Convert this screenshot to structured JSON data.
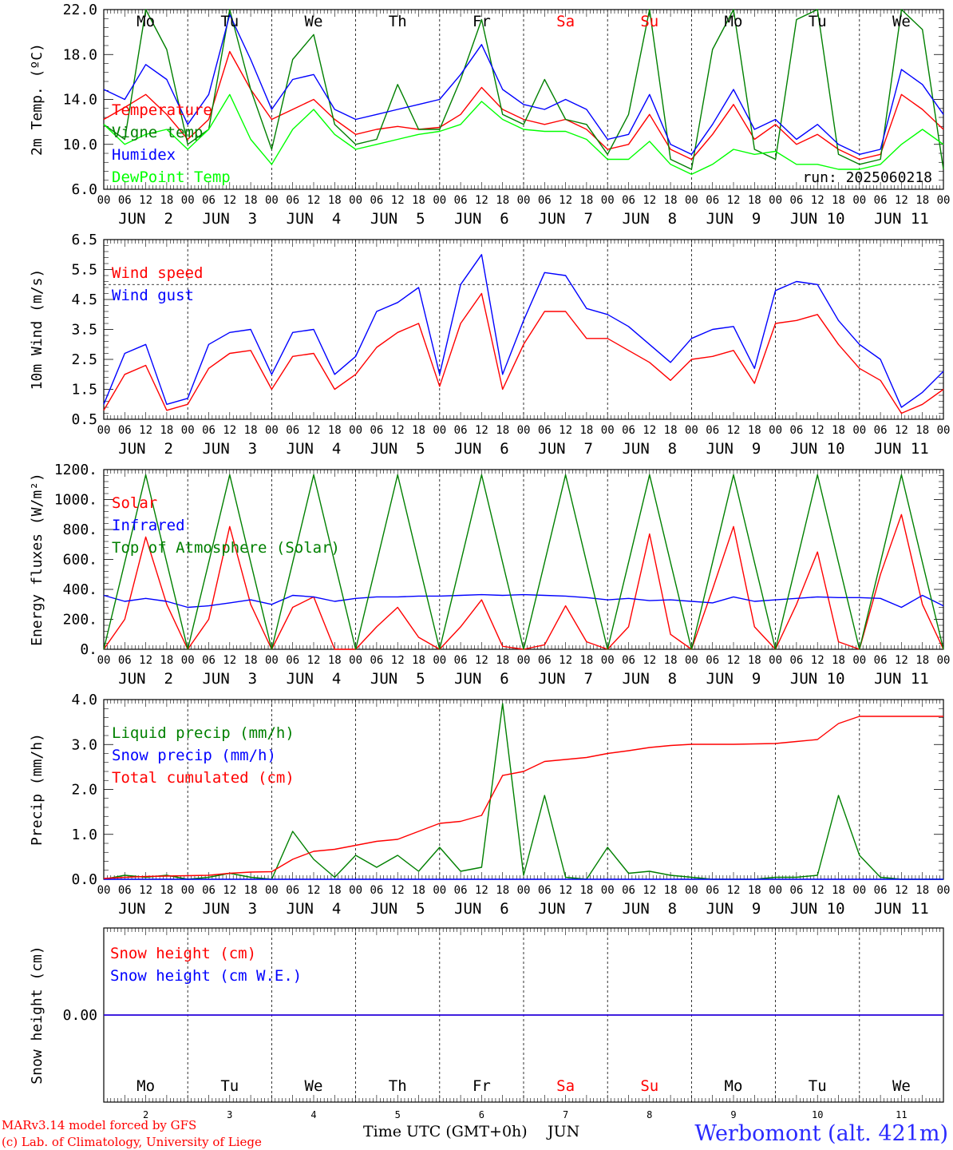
{
  "run_label": "run: 2025060218",
  "colors": {
    "red": "#ff0000",
    "dkgreen": "#008000",
    "blue": "#0000ff",
    "ltgreen": "#00ff00",
    "black": "#000000",
    "weekend": "#ff0000"
  },
  "days": [
    {
      "dow": "Mo",
      "date": "JUN  2",
      "num": "2",
      "weekend": false
    },
    {
      "dow": "Tu",
      "date": "JUN  3",
      "num": "3",
      "weekend": false
    },
    {
      "dow": "We",
      "date": "JUN  4",
      "num": "4",
      "weekend": false
    },
    {
      "dow": "Th",
      "date": "JUN  5",
      "num": "5",
      "weekend": false
    },
    {
      "dow": "Fr",
      "date": "JUN  6",
      "num": "6",
      "weekend": false
    },
    {
      "dow": "Sa",
      "date": "JUN  7",
      "num": "7",
      "weekend": true
    },
    {
      "dow": "Su",
      "date": "JUN  8",
      "num": "8",
      "weekend": true
    },
    {
      "dow": "Mo",
      "date": "JUN  9",
      "num": "9",
      "weekend": false
    },
    {
      "dow": "Tu",
      "date": "JUN 10",
      "num": "10",
      "weekend": false
    },
    {
      "dow": "We",
      "date": "JUN 11",
      "num": "11",
      "weekend": false
    }
  ],
  "hour_labels": [
    "00",
    "06",
    "12",
    "18"
  ],
  "final_hour_label": "00",
  "footer": {
    "model_line": "MARv3.14 model forced by GFS",
    "copyright_line": "(c) Lab. of Climatology, University of Liege",
    "time_axis_label": "Time UTC (GMT+0h)",
    "month_label": "JUN",
    "station": "Werbomont (alt. 421m)"
  },
  "chart_data": [
    {
      "type": "line",
      "ylabel": "2m Temp. (ºC)",
      "ylim": [
        6,
        24
      ],
      "yticks": [
        "6.0",
        "10.0",
        "14.0",
        "18.0",
        "22.0"
      ],
      "x_hours": [
        0,
        6,
        12,
        18,
        24,
        30,
        36,
        42,
        48,
        54,
        60,
        66,
        72,
        78,
        84,
        90,
        96,
        102,
        108,
        114,
        120,
        126,
        132,
        138,
        144,
        150,
        156,
        162,
        168,
        174,
        180,
        186,
        192,
        198,
        204,
        210,
        216,
        222,
        228,
        234,
        240
      ],
      "series": [
        {
          "name": "Temperature",
          "color": "#ff0000",
          "values": [
            13.0,
            14.2,
            15.5,
            13.5,
            11.0,
            13.0,
            19.8,
            16.0,
            13.0,
            14.0,
            15.0,
            13.0,
            11.5,
            12.0,
            12.3,
            12.0,
            12.2,
            13.5,
            16.2,
            14.0,
            13.0,
            12.5,
            13.0,
            12.0,
            10.0,
            10.5,
            13.5,
            10.0,
            9.0,
            11.5,
            14.5,
            11.0,
            12.5,
            10.5,
            11.5,
            10.0,
            9.0,
            9.5,
            15.5,
            14.0,
            12.0
          ]
        },
        {
          "name": "Vigne temp",
          "color": "#008000",
          "values": [
            12.5,
            11.0,
            24.0,
            20.0,
            10.5,
            12.0,
            24.0,
            16.0,
            10.0,
            19.0,
            21.5,
            12.5,
            10.5,
            11.0,
            16.5,
            12.0,
            12.0,
            17.0,
            23.0,
            13.5,
            12.5,
            17.0,
            13.0,
            12.5,
            9.5,
            13.5,
            24.0,
            9.0,
            8.0,
            20.0,
            24.0,
            10.0,
            9.0,
            23.0,
            24.0,
            9.5,
            8.5,
            9.0,
            24.0,
            22.0,
            8.0
          ]
        },
        {
          "name": "Humidex",
          "color": "#0000ff",
          "values": [
            16.0,
            15.0,
            18.5,
            17.0,
            12.5,
            15.5,
            23.5,
            19.0,
            14.0,
            17.0,
            17.5,
            14.0,
            13.0,
            13.5,
            14.0,
            14.5,
            15.0,
            17.5,
            20.5,
            16.0,
            14.5,
            14.0,
            15.0,
            14.0,
            11.0,
            11.5,
            15.5,
            10.5,
            9.5,
            12.5,
            16.0,
            12.0,
            13.0,
            11.0,
            12.5,
            10.5,
            9.5,
            10.0,
            18.0,
            16.5,
            13.5
          ]
        },
        {
          "name": "DewPoint Temp",
          "color": "#00ff00",
          "values": [
            12.5,
            10.5,
            11.5,
            12.0,
            10.0,
            12.0,
            15.5,
            11.0,
            8.5,
            12.0,
            14.0,
            11.5,
            10.0,
            10.5,
            11.0,
            11.5,
            11.8,
            12.5,
            14.8,
            13.0,
            12.0,
            11.8,
            11.8,
            11.0,
            9.0,
            9.0,
            10.8,
            8.5,
            7.5,
            8.5,
            10.0,
            9.5,
            9.8,
            8.5,
            8.5,
            8.0,
            8.0,
            8.5,
            10.5,
            12.0,
            10.5
          ]
        }
      ]
    },
    {
      "type": "line",
      "ylabel": "10m Wind (m/s)",
      "ylim": [
        0.5,
        6.5
      ],
      "yticks": [
        "0.5",
        "1.5",
        "2.5",
        "3.5",
        "4.5",
        "5.5",
        "6.5"
      ],
      "reference_line": 5.0,
      "x_hours": [
        0,
        6,
        12,
        18,
        24,
        30,
        36,
        42,
        48,
        54,
        60,
        66,
        72,
        78,
        84,
        90,
        96,
        102,
        108,
        114,
        120,
        126,
        132,
        138,
        144,
        150,
        156,
        162,
        168,
        174,
        180,
        186,
        192,
        198,
        204,
        210,
        216,
        222,
        228,
        234,
        240
      ],
      "series": [
        {
          "name": "Wind speed",
          "color": "#ff0000",
          "values": [
            0.8,
            2.0,
            2.3,
            0.8,
            1.0,
            2.2,
            2.7,
            2.8,
            1.5,
            2.6,
            2.7,
            1.5,
            2.0,
            2.9,
            3.4,
            3.7,
            1.6,
            3.7,
            4.7,
            1.5,
            3.0,
            4.1,
            4.1,
            3.2,
            3.2,
            2.8,
            2.4,
            1.8,
            2.5,
            2.6,
            2.8,
            1.7,
            3.7,
            3.8,
            4.0,
            3.0,
            2.2,
            1.8,
            0.7,
            1.0,
            1.5
          ]
        },
        {
          "name": "Wind gust",
          "color": "#0000ff",
          "values": [
            1.0,
            2.7,
            3.0,
            1.0,
            1.2,
            3.0,
            3.4,
            3.5,
            2.0,
            3.4,
            3.5,
            2.0,
            2.6,
            4.1,
            4.4,
            4.9,
            2.0,
            5.0,
            6.0,
            2.0,
            3.8,
            5.4,
            5.3,
            4.2,
            4.0,
            3.6,
            3.0,
            2.4,
            3.2,
            3.5,
            3.6,
            2.2,
            4.8,
            5.1,
            5.0,
            3.8,
            3.0,
            2.5,
            0.9,
            1.4,
            2.1
          ]
        }
      ]
    },
    {
      "type": "line",
      "ylabel": "Energy fluxes (W/m²)",
      "ylim": [
        0,
        1200
      ],
      "yticks": [
        "0.",
        "200.",
        "400.",
        "600.",
        "800.",
        "1000.",
        "1200."
      ],
      "x_hours": [
        0,
        6,
        12,
        18,
        24,
        30,
        36,
        42,
        48,
        54,
        60,
        66,
        72,
        78,
        84,
        90,
        96,
        102,
        108,
        114,
        120,
        126,
        132,
        138,
        144,
        150,
        156,
        162,
        168,
        174,
        180,
        186,
        192,
        198,
        204,
        210,
        216,
        222,
        228,
        234,
        240
      ],
      "series": [
        {
          "name": "Solar",
          "color": "#ff0000",
          "values": [
            0,
            200,
            750,
            300,
            0,
            200,
            820,
            300,
            0,
            280,
            350,
            0,
            0,
            150,
            280,
            80,
            0,
            150,
            330,
            20,
            0,
            30,
            290,
            50,
            0,
            150,
            770,
            100,
            0,
            400,
            820,
            150,
            0,
            300,
            650,
            50,
            0,
            500,
            900,
            300,
            0
          ]
        },
        {
          "name": "Infrared",
          "color": "#0000ff",
          "values": [
            360,
            320,
            340,
            320,
            280,
            290,
            310,
            330,
            300,
            360,
            350,
            320,
            340,
            350,
            350,
            355,
            355,
            360,
            365,
            360,
            365,
            360,
            355,
            345,
            330,
            340,
            325,
            330,
            320,
            310,
            350,
            320,
            330,
            340,
            350,
            345,
            345,
            340,
            280,
            360,
            290
          ]
        },
        {
          "name": "Top of Atmosphere (Solar)",
          "color": "#008000",
          "values": [
            0,
            580,
            1165,
            580,
            0,
            580,
            1165,
            580,
            0,
            580,
            1165,
            580,
            0,
            580,
            1165,
            580,
            0,
            580,
            1165,
            580,
            0,
            580,
            1165,
            580,
            0,
            580,
            1165,
            580,
            0,
            580,
            1165,
            580,
            0,
            580,
            1165,
            580,
            0,
            580,
            1165,
            580,
            0
          ]
        }
      ]
    },
    {
      "type": "line",
      "ylabel": "Precip (mm/h)",
      "ylim": [
        0,
        4.5
      ],
      "yticks": [
        "0.0",
        "1.0",
        "2.0",
        "3.0",
        "4.0"
      ],
      "x_hours": [
        0,
        6,
        12,
        18,
        24,
        30,
        36,
        42,
        48,
        54,
        60,
        66,
        72,
        78,
        84,
        90,
        96,
        102,
        108,
        114,
        120,
        126,
        132,
        138,
        144,
        150,
        156,
        162,
        168,
        174,
        180,
        186,
        192,
        198,
        204,
        210,
        216,
        222,
        228,
        234,
        240
      ],
      "series": [
        {
          "name": "Liquid precip (mm/h)",
          "color": "#008000",
          "values": [
            0.0,
            0.1,
            0.05,
            0.1,
            0.0,
            0.05,
            0.15,
            0.05,
            0.0,
            1.2,
            0.5,
            0.05,
            0.6,
            0.3,
            0.6,
            0.2,
            0.8,
            0.2,
            0.3,
            4.4,
            0.1,
            2.1,
            0.05,
            0.0,
            0.8,
            0.15,
            0.2,
            0.1,
            0.05,
            0.0,
            0.0,
            0.0,
            0.05,
            0.05,
            0.1,
            2.1,
            0.6,
            0.05,
            0.0,
            0.0,
            0.0
          ]
        },
        {
          "name": "Snow precip (mm/h)",
          "color": "#0000ff",
          "values": [
            0,
            0,
            0,
            0,
            0,
            0,
            0,
            0,
            0,
            0,
            0,
            0,
            0,
            0,
            0,
            0,
            0,
            0,
            0,
            0,
            0,
            0,
            0,
            0,
            0,
            0,
            0,
            0,
            0,
            0,
            0,
            0,
            0,
            0,
            0,
            0,
            0,
            0,
            0,
            0,
            0
          ]
        },
        {
          "name": "Total cumulated (cm)",
          "color": "#ff0000",
          "values": [
            0.02,
            0.05,
            0.07,
            0.08,
            0.09,
            0.1,
            0.15,
            0.18,
            0.19,
            0.5,
            0.7,
            0.75,
            0.85,
            0.95,
            1.0,
            1.2,
            1.4,
            1.45,
            1.6,
            2.6,
            2.7,
            2.95,
            3.0,
            3.05,
            3.15,
            3.22,
            3.3,
            3.35,
            3.38,
            3.38,
            3.38,
            3.39,
            3.4,
            3.45,
            3.5,
            3.9,
            4.08,
            4.08,
            4.08,
            4.08,
            4.08
          ]
        }
      ]
    },
    {
      "type": "line",
      "ylabel": "Snow height (cm)",
      "ylim": [
        -1,
        1
      ],
      "yticks": [
        "0.00"
      ],
      "x_hours": [
        0,
        240
      ],
      "series": [
        {
          "name": "Snow height (cm)",
          "color": "#ff0000",
          "values": [
            0,
            0
          ]
        },
        {
          "name": "Snow height (cm W.E.)",
          "color": "#0000ff",
          "values": [
            0,
            0
          ]
        }
      ]
    }
  ]
}
